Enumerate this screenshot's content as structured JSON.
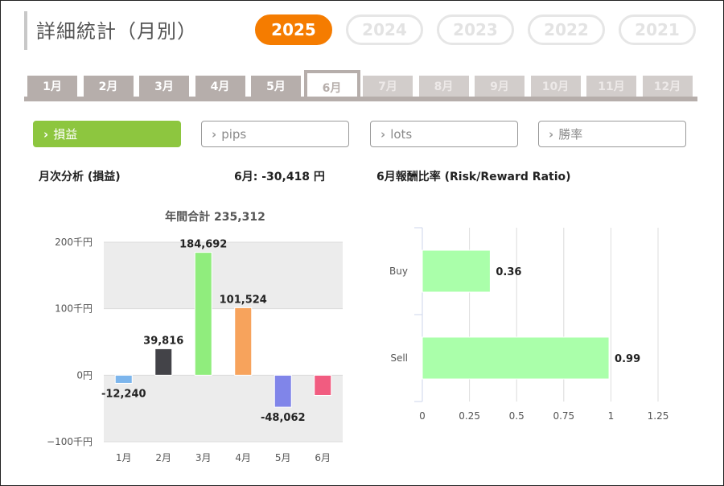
{
  "header": {
    "title": "詳細統計（月別）"
  },
  "years": [
    {
      "label": "2025",
      "active": true
    },
    {
      "label": "2024",
      "active": false
    },
    {
      "label": "2023",
      "active": false
    },
    {
      "label": "2022",
      "active": false
    },
    {
      "label": "2021",
      "active": false
    }
  ],
  "months": [
    "1月",
    "2月",
    "3月",
    "4月",
    "5月",
    "6月",
    "7月",
    "8月",
    "9月",
    "10月",
    "11月",
    "12月"
  ],
  "active_month_index": 5,
  "enabled_month_count": 6,
  "metric_tabs": [
    {
      "label": "損益",
      "active": true
    },
    {
      "label": "pips",
      "active": false
    },
    {
      "label": "lots",
      "active": false
    },
    {
      "label": "勝率",
      "active": false
    }
  ],
  "monthly_analysis": {
    "label": "月次分析 (損益)",
    "month_value": "6月:  -30,418 円"
  },
  "ratio_panel": {
    "label": "6月報酬比率 (Risk/Reward Ratio)"
  },
  "colors": {
    "accent_orange": "#f57c00",
    "accent_green": "#8dc63f",
    "tab_gray": "#b6aeab"
  },
  "chart_data": [
    {
      "type": "bar",
      "title": "年間合計 235,312",
      "categories": [
        "1月",
        "2月",
        "3月",
        "4月",
        "5月",
        "6月"
      ],
      "values": [
        -12240,
        39816,
        184692,
        101524,
        -48062,
        -30418
      ],
      "value_labels": [
        "-12,240",
        "39,816",
        "184,692",
        "101,524",
        "-48,062",
        ""
      ],
      "colors": [
        "#7cb5ec",
        "#434348",
        "#90ed7d",
        "#f7a35c",
        "#8085e9",
        "#f15c80"
      ],
      "y_ticks": [
        200000,
        100000,
        0,
        -100000
      ],
      "y_tick_labels": [
        "200千円",
        "100千円",
        "0円",
        "−100千円"
      ],
      "ylim": [
        -100000,
        200000
      ],
      "grid": true
    },
    {
      "type": "bar",
      "orientation": "horizontal",
      "categories": [
        "Buy",
        "Sell"
      ],
      "values": [
        0.36,
        0.99
      ],
      "value_labels": [
        "0.36",
        "0.99"
      ],
      "color": "#aaffaa",
      "x_ticks": [
        0,
        0.25,
        0.5,
        0.75,
        1,
        1.25
      ],
      "x_tick_labels": [
        "0",
        "0.25",
        "0.5",
        "0.75",
        "1",
        "1.25"
      ],
      "xlim": [
        0,
        1.25
      ],
      "grid": true
    }
  ]
}
